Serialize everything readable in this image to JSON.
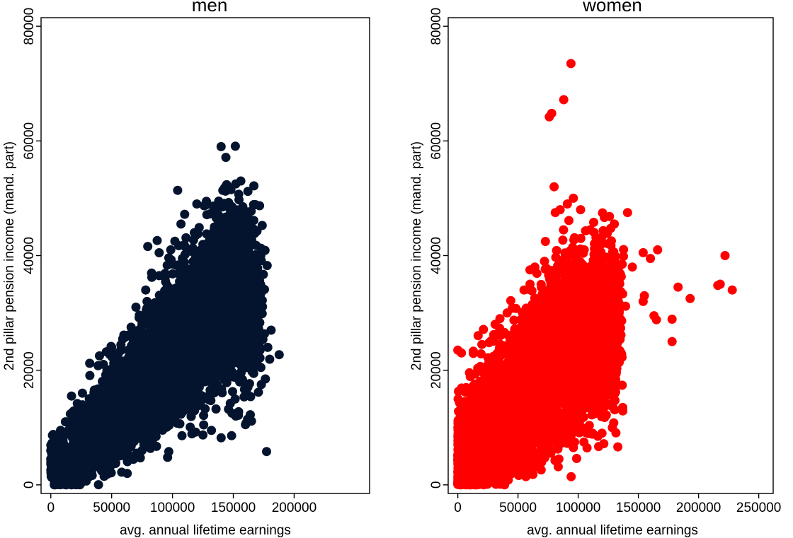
{
  "chart_data": [
    {
      "type": "scatter",
      "title": "men",
      "xlabel": "avg. annual lifetime earnings",
      "ylabel": "2nd pillar pension income (mand. part)",
      "xlim": [
        -8000,
        262000
      ],
      "ylim": [
        -1500,
        81500
      ],
      "xticks": [
        0,
        50000,
        100000,
        150000,
        200000
      ],
      "yticks": [
        0,
        20000,
        40000,
        60000,
        80000
      ],
      "grid": false,
      "color": "#04142e",
      "points": [
        [
          140000,
          59000
        ],
        [
          152000,
          52500
        ],
        [
          148000,
          51500
        ],
        [
          162000,
          51200
        ],
        [
          138000,
          49500
        ],
        [
          141000,
          48500
        ],
        [
          120000,
          49000
        ],
        [
          126000,
          48700
        ],
        [
          160000,
          47000
        ],
        [
          110000,
          47200
        ],
        [
          107000,
          45500
        ],
        [
          118000,
          44000
        ],
        [
          102000,
          42500
        ],
        [
          170000,
          37800
        ],
        [
          169000,
          35000
        ],
        [
          166000,
          31500
        ],
        [
          171000,
          27000
        ],
        [
          172000,
          23500
        ],
        [
          173000,
          17500
        ],
        [
          160000,
          10500
        ],
        [
          140000,
          8200
        ],
        [
          152000,
          12000
        ],
        [
          89000,
          36500
        ],
        [
          94000,
          36200
        ],
        [
          83000,
          36200
        ],
        [
          78000,
          34000
        ],
        [
          70000,
          31000
        ],
        [
          66000,
          27500
        ],
        [
          58000,
          23500
        ],
        [
          50000,
          24000
        ],
        [
          53000,
          22500
        ],
        [
          32000,
          21200
        ],
        [
          40000,
          22500
        ],
        [
          26000,
          16000
        ],
        [
          17000,
          15500
        ],
        [
          12000,
          11000
        ],
        [
          8000,
          9500
        ],
        [
          2000,
          8800
        ],
        [
          1000,
          7300
        ],
        [
          5000,
          6800
        ],
        [
          0,
          6000
        ],
        [
          0,
          4500
        ],
        [
          1000,
          1500
        ],
        [
          2000,
          3000
        ],
        [
          8000,
          500
        ],
        [
          16000,
          300
        ],
        [
          20000,
          1000
        ],
        [
          44000,
          3500
        ],
        [
          75000,
          6000
        ],
        [
          96000,
          4800
        ],
        [
          97000,
          5800
        ],
        [
          116000,
          8900
        ],
        [
          119000,
          9200
        ],
        [
          125000,
          8700
        ],
        [
          132000,
          9500
        ],
        [
          84000,
          25000
        ],
        [
          110000,
          33000
        ],
        [
          130000,
          40000
        ],
        [
          145000,
          38000
        ],
        [
          160000,
          35000
        ]
      ],
      "clusters": [
        {
          "cx": 14000,
          "cy": 3000,
          "sx": 8000,
          "sy": 1600,
          "n": 700
        },
        {
          "cx": 38000,
          "cy": 8500,
          "sx": 10000,
          "sy": 2600,
          "n": 700
        },
        {
          "cx": 62000,
          "cy": 13500,
          "sx": 11000,
          "sy": 3400,
          "n": 800
        },
        {
          "cx": 86000,
          "cy": 19000,
          "sx": 12000,
          "sy": 4300,
          "n": 900
        },
        {
          "cx": 108000,
          "cy": 25000,
          "sx": 12000,
          "sy": 5200,
          "n": 1000
        },
        {
          "cx": 128000,
          "cy": 30000,
          "sx": 12000,
          "sy": 6000,
          "n": 1000
        },
        {
          "cx": 148000,
          "cy": 34000,
          "sx": 10000,
          "sy": 7000,
          "n": 900
        },
        {
          "cx": 162000,
          "cy": 30000,
          "sx": 6000,
          "sy": 8000,
          "n": 300
        }
      ]
    },
    {
      "type": "scatter",
      "title": "women",
      "xlabel": "avg. annual lifetime earnings",
      "ylabel": "2nd pillar pension income (mand. part)",
      "xlim": [
        -8000,
        262000
      ],
      "ylim": [
        -1500,
        81500
      ],
      "xticks": [
        0,
        50000,
        100000,
        150000,
        200000,
        250000
      ],
      "yticks": [
        0,
        20000,
        40000,
        60000,
        80000
      ],
      "grid": false,
      "color": "#ff0000",
      "points": [
        [
          94000,
          73500
        ],
        [
          88000,
          67200
        ],
        [
          78000,
          64800
        ],
        [
          76000,
          64200
        ],
        [
          80000,
          52000
        ],
        [
          96000,
          50000
        ],
        [
          91000,
          49000
        ],
        [
          85000,
          48000
        ],
        [
          102000,
          48000
        ],
        [
          81000,
          47500
        ],
        [
          141000,
          47500
        ],
        [
          130000,
          45500
        ],
        [
          166000,
          41000
        ],
        [
          154000,
          40500
        ],
        [
          222000,
          40000
        ],
        [
          160000,
          39500
        ],
        [
          145000,
          38000
        ],
        [
          228000,
          34000
        ],
        [
          216000,
          34800
        ],
        [
          218000,
          35000
        ],
        [
          183000,
          34500
        ],
        [
          193000,
          32500
        ],
        [
          155000,
          33000
        ],
        [
          154000,
          32000
        ],
        [
          163000,
          29500
        ],
        [
          165000,
          28800
        ],
        [
          178000,
          28900
        ],
        [
          178000,
          25000
        ],
        [
          137000,
          13500
        ],
        [
          122000,
          23000
        ],
        [
          128000,
          27000
        ],
        [
          133000,
          33000
        ],
        [
          105000,
          41000
        ],
        [
          110000,
          44500
        ],
        [
          0,
          23500
        ],
        [
          3000,
          23000
        ],
        [
          20000,
          24500
        ],
        [
          26000,
          24800
        ],
        [
          31000,
          28000
        ],
        [
          35000,
          29000
        ],
        [
          41000,
          30000
        ],
        [
          60000,
          35000
        ],
        [
          55000,
          34000
        ],
        [
          64000,
          38000
        ],
        [
          72000,
          39000
        ],
        [
          112000,
          9000
        ],
        [
          96000,
          6500
        ],
        [
          84000,
          4500
        ],
        [
          76000,
          6000
        ],
        [
          45000,
          2000
        ],
        [
          115000,
          30000
        ],
        [
          125000,
          38000
        ]
      ],
      "clusters": [
        {
          "cx": 6000,
          "cy": 4000,
          "sx": 5000,
          "sy": 3500,
          "n": 900
        },
        {
          "cx": 22000,
          "cy": 9000,
          "sx": 9000,
          "sy": 4500,
          "n": 900
        },
        {
          "cx": 42000,
          "cy": 13000,
          "sx": 10000,
          "sy": 5000,
          "n": 900
        },
        {
          "cx": 62000,
          "cy": 17000,
          "sx": 11000,
          "sy": 5500,
          "n": 900
        },
        {
          "cx": 82000,
          "cy": 21500,
          "sx": 11000,
          "sy": 6500,
          "n": 900
        },
        {
          "cx": 100000,
          "cy": 25000,
          "sx": 10000,
          "sy": 7000,
          "n": 800
        },
        {
          "cx": 118000,
          "cy": 27000,
          "sx": 8000,
          "sy": 7000,
          "n": 500
        },
        {
          "cx": 130000,
          "cy": 28000,
          "sx": 3000,
          "sy": 6000,
          "n": 200
        }
      ]
    }
  ]
}
